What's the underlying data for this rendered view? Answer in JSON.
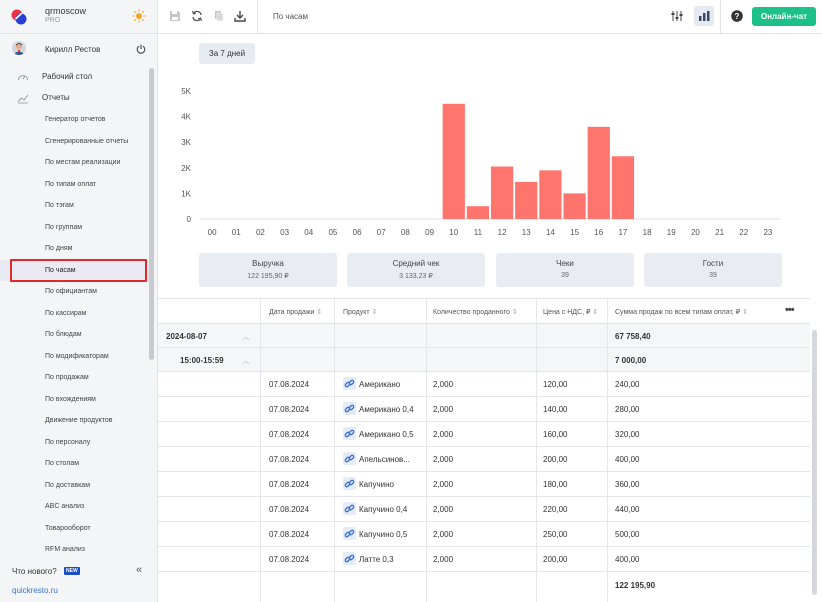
{
  "org": {
    "name": "qrmoscow",
    "plan": "PRO"
  },
  "user": {
    "name": "Кирилл Рестов"
  },
  "nav": {
    "desktop": "Рабочий стол",
    "reports": "Отчеты"
  },
  "subnav": [
    "Генератор отчетов",
    "Сгенерированные отчеты",
    "По местам реализации",
    "По типам оплат",
    "По тэгам",
    "По группам",
    "По дням",
    "По часам",
    "По официантам",
    "По кассирам",
    "По блюдам",
    "По модификаторам",
    "По продажам",
    "По вхождениям",
    "Движение продуктов",
    "По персоналу",
    "По столам",
    "По доставкам",
    "ABC анализ",
    "Товарооборот",
    "RFM анализ"
  ],
  "whatsnew": {
    "label": "Что нового?",
    "badge": "NEW"
  },
  "footer": {
    "link": "quickresto.ru"
  },
  "toolbar": {
    "title": "По часам",
    "chat_button": "Онлайн-чат"
  },
  "period_button": "За 7 дней",
  "colors": {
    "bar": "#ff746c",
    "accent": "#1ec08a",
    "highlight": "#e0292b"
  },
  "chart_data": {
    "type": "bar",
    "categories": [
      "00",
      "01",
      "02",
      "03",
      "04",
      "05",
      "06",
      "07",
      "08",
      "09",
      "10",
      "11",
      "12",
      "13",
      "14",
      "15",
      "16",
      "17",
      "18",
      "19",
      "20",
      "21",
      "22",
      "23"
    ],
    "values": [
      0,
      0,
      0,
      0,
      0,
      0,
      0,
      0,
      0,
      0,
      4500,
      500,
      2050,
      1450,
      1900,
      1000,
      3600,
      2450,
      0,
      0,
      0,
      0,
      0,
      0
    ],
    "yticks": [
      "0",
      "1K",
      "2K",
      "3K",
      "4K",
      "5K"
    ],
    "ylim": [
      0,
      5000
    ]
  },
  "stats": [
    {
      "title": "Выручка",
      "value": "122 195,90 ₽"
    },
    {
      "title": "Средний чек",
      "value": "3 133,23 ₽"
    },
    {
      "title": "Чеки",
      "value": "39"
    },
    {
      "title": "Гости",
      "value": "39"
    }
  ],
  "table": {
    "headers": [
      "Дата продажи",
      "Продукт",
      "Количество проданного",
      "Цена с НДС, ₽",
      "Сумма продаж по всем типам оплат, ₽"
    ],
    "group1": {
      "label": "2024-08-07",
      "sum": "67 758,40"
    },
    "group2": {
      "label": "15:00-15:59",
      "sum": "7 000,00"
    },
    "rows": [
      {
        "date": "07.08.2024",
        "product": "Американо",
        "qty": "2,000",
        "price": "120,00",
        "sum": "240,00"
      },
      {
        "date": "07.08.2024",
        "product": "Американо 0,4",
        "qty": "2,000",
        "price": "140,00",
        "sum": "280,00"
      },
      {
        "date": "07.08.2024",
        "product": "Американо 0,5",
        "qty": "2,000",
        "price": "160,00",
        "sum": "320,00"
      },
      {
        "date": "07.08.2024",
        "product": "Апельсинов...",
        "qty": "2,000",
        "price": "200,00",
        "sum": "400,00"
      },
      {
        "date": "07.08.2024",
        "product": "Капучино",
        "qty": "2,000",
        "price": "180,00",
        "sum": "360,00"
      },
      {
        "date": "07.08.2024",
        "product": "Капучино 0,4",
        "qty": "2,000",
        "price": "220,00",
        "sum": "440,00"
      },
      {
        "date": "07.08.2024",
        "product": "Капучино 0,5",
        "qty": "2,000",
        "price": "250,00",
        "sum": "500,00"
      },
      {
        "date": "07.08.2024",
        "product": "Латте 0,3",
        "qty": "2,000",
        "price": "200,00",
        "sum": "400,00"
      }
    ],
    "total": "122 195,90"
  }
}
